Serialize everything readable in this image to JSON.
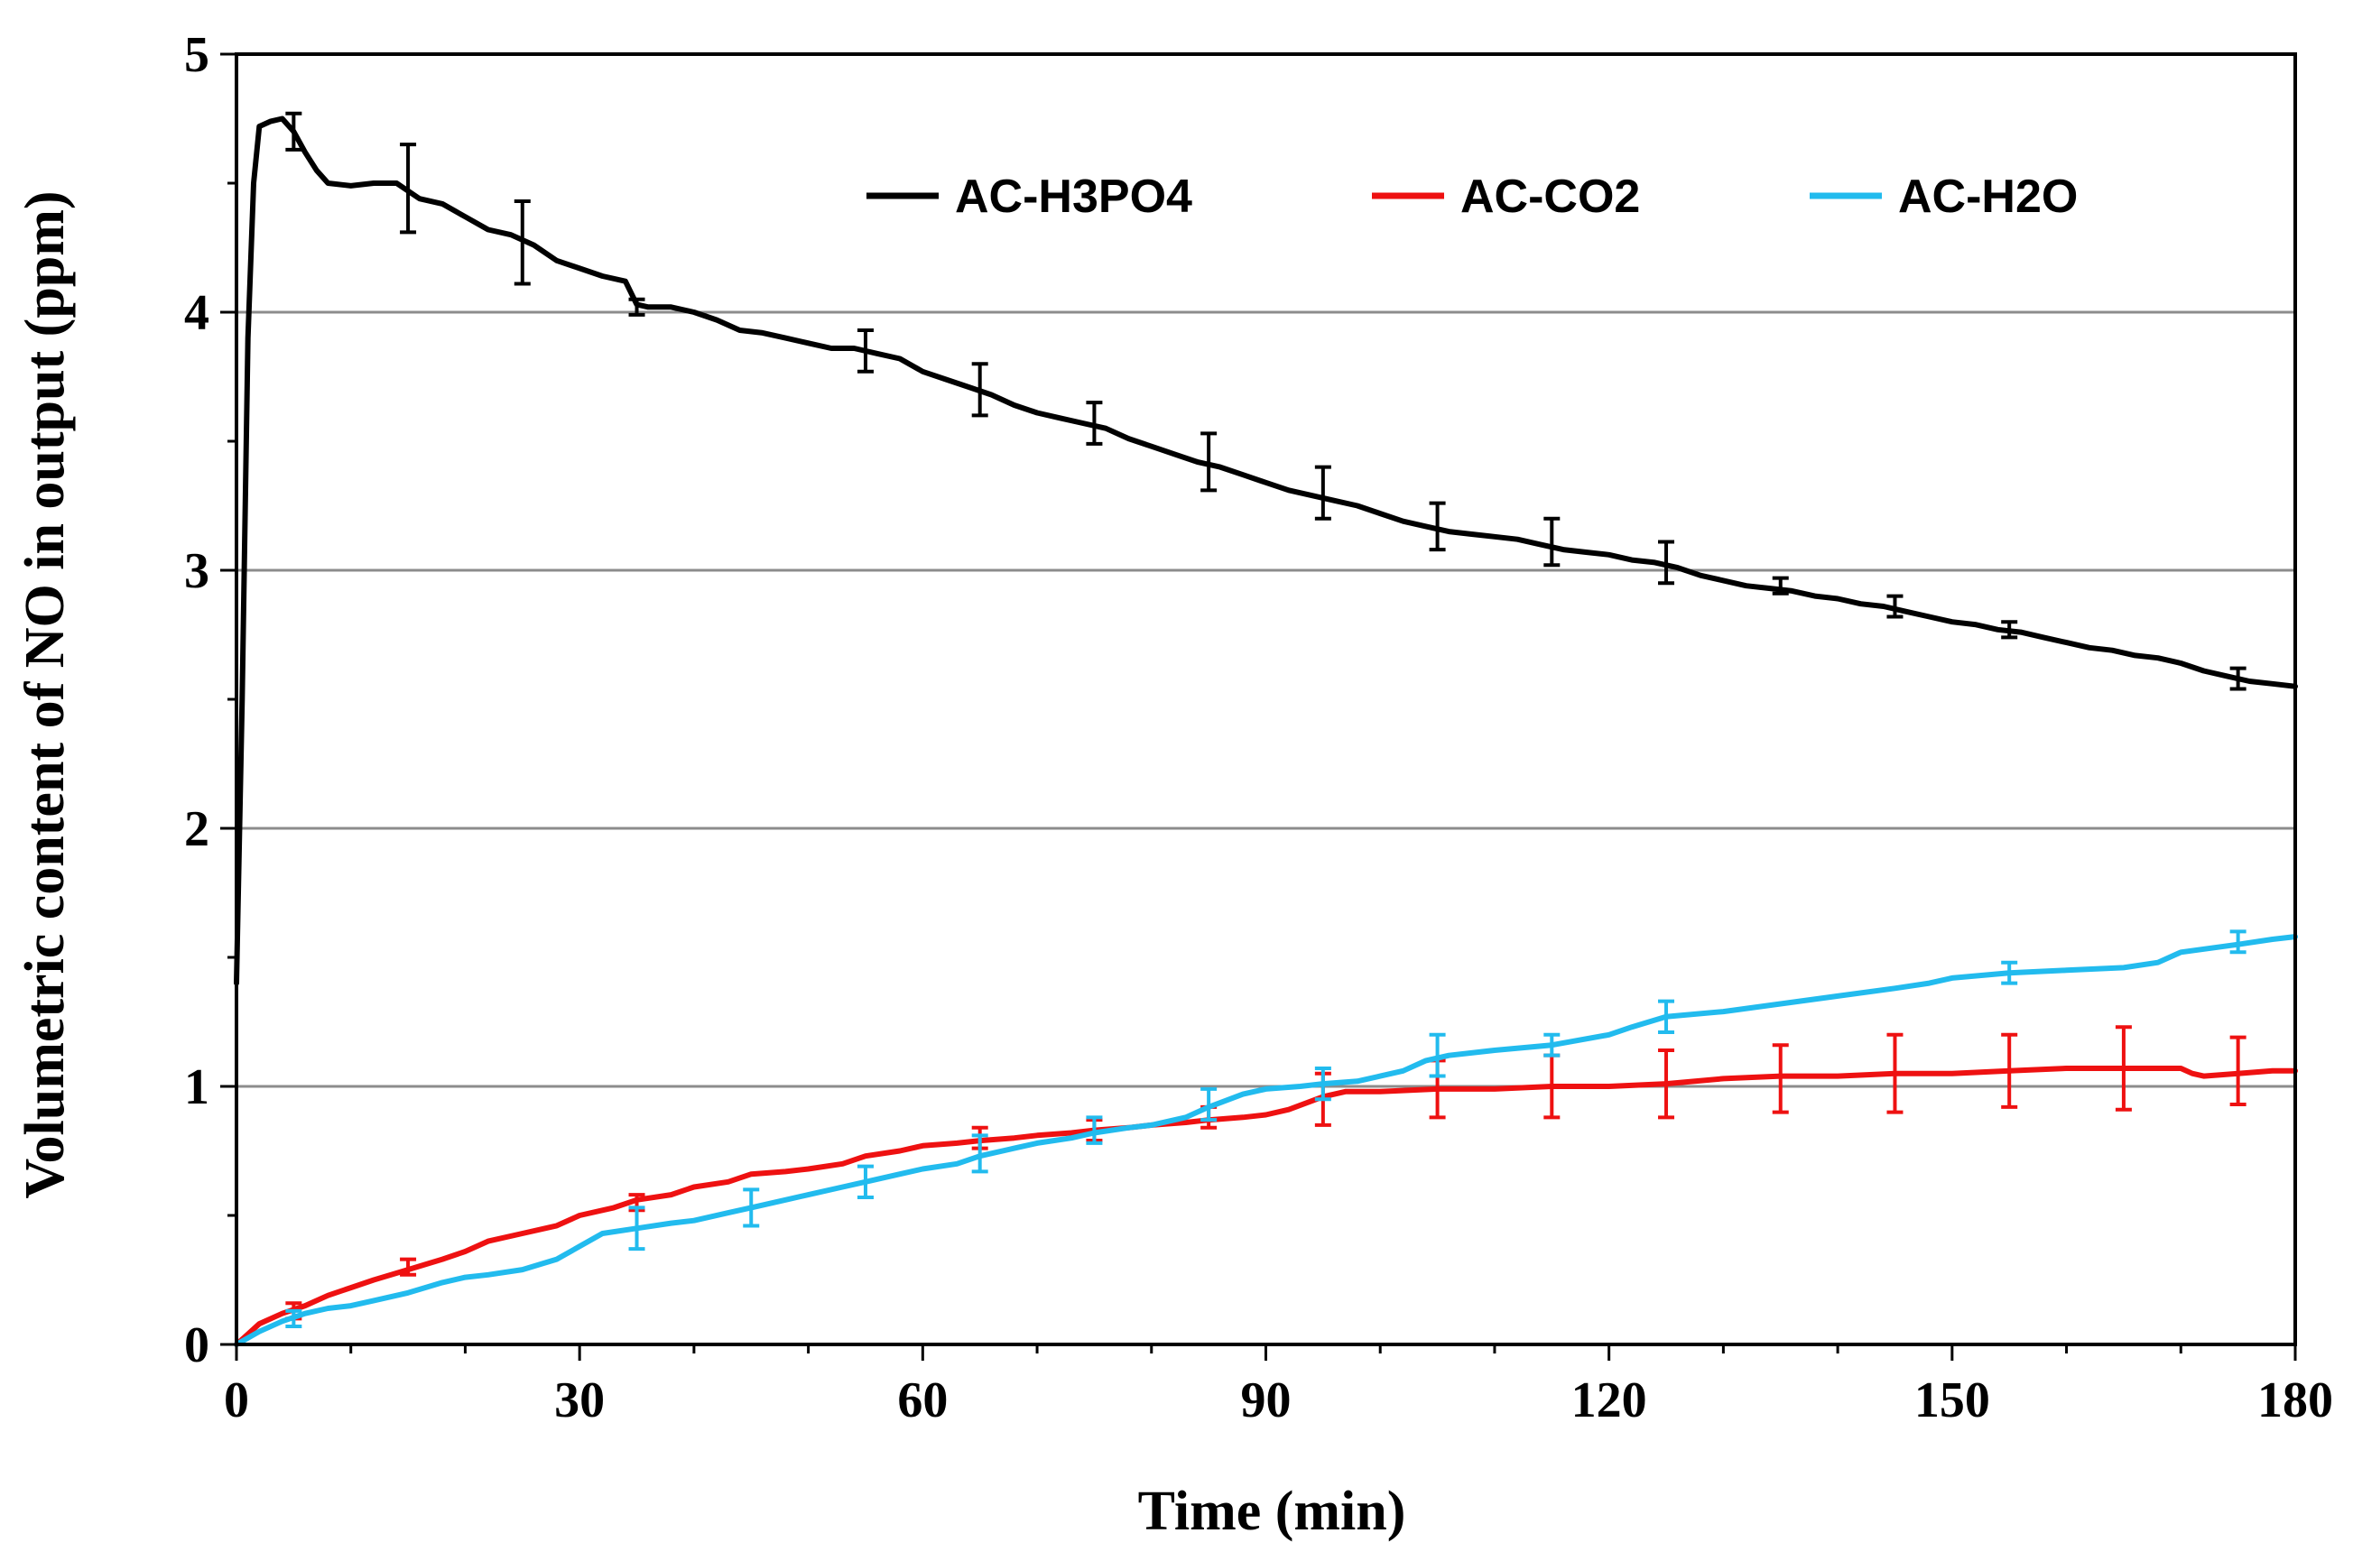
{
  "chart_data": {
    "type": "line",
    "title": "",
    "xlabel": "Time (min)",
    "ylabel": "Volumetric content of NO in output (ppm)",
    "xlim": [
      0,
      180
    ],
    "ylim": [
      0,
      5
    ],
    "x_ticks": [
      0,
      30,
      60,
      90,
      120,
      150,
      180
    ],
    "y_ticks": [
      0,
      1,
      2,
      3,
      4,
      5
    ],
    "grid": "horizontal",
    "legend_position": "top-right",
    "series": [
      {
        "name": "AC-H3PO4",
        "color": "#000000",
        "x": [
          0,
          0.5,
          1,
          1.5,
          2,
          3,
          4,
          5,
          6,
          7,
          8,
          10,
          12,
          14,
          16,
          18,
          20,
          22,
          24,
          26,
          28,
          30,
          32,
          34,
          35,
          36,
          38,
          40,
          42,
          44,
          46,
          48,
          50,
          52,
          54,
          56,
          58,
          60,
          62,
          64,
          66,
          68,
          70,
          72,
          74,
          76,
          78,
          80,
          82,
          84,
          86,
          88,
          90,
          92,
          94,
          96,
          98,
          100,
          102,
          104,
          106,
          108,
          110,
          112,
          114,
          116,
          118,
          120,
          122,
          124,
          126,
          128,
          130,
          132,
          134,
          136,
          138,
          140,
          142,
          144,
          146,
          148,
          150,
          152,
          154,
          156,
          158,
          160,
          162,
          164,
          166,
          168,
          170,
          172,
          174,
          176,
          178,
          180
        ],
        "y": [
          1.4,
          2.5,
          3.9,
          4.5,
          4.72,
          4.74,
          4.75,
          4.7,
          4.62,
          4.55,
          4.5,
          4.49,
          4.5,
          4.5,
          4.44,
          4.42,
          4.37,
          4.32,
          4.3,
          4.26,
          4.2,
          4.17,
          4.14,
          4.12,
          4.03,
          4.02,
          4.02,
          4.0,
          3.97,
          3.93,
          3.92,
          3.9,
          3.88,
          3.86,
          3.86,
          3.84,
          3.82,
          3.77,
          3.74,
          3.71,
          3.68,
          3.64,
          3.61,
          3.59,
          3.57,
          3.55,
          3.51,
          3.48,
          3.45,
          3.42,
          3.4,
          3.37,
          3.34,
          3.31,
          3.29,
          3.27,
          3.25,
          3.22,
          3.19,
          3.17,
          3.15,
          3.14,
          3.13,
          3.12,
          3.1,
          3.08,
          3.07,
          3.06,
          3.04,
          3.03,
          3.01,
          2.98,
          2.96,
          2.94,
          2.93,
          2.92,
          2.9,
          2.89,
          2.87,
          2.86,
          2.84,
          2.82,
          2.8,
          2.79,
          2.77,
          2.76,
          2.74,
          2.72,
          2.7,
          2.69,
          2.67,
          2.66,
          2.64,
          2.61,
          2.59,
          2.57,
          2.56,
          2.55
        ],
        "error_x": [
          5,
          15,
          25,
          35,
          55,
          65,
          75,
          85,
          95,
          105,
          115,
          125,
          135,
          145,
          155,
          175
        ],
        "error_y": [
          4.7,
          4.48,
          4.27,
          4.02,
          3.85,
          3.7,
          3.57,
          3.42,
          3.3,
          3.17,
          3.11,
          3.03,
          2.94,
          2.86,
          2.77,
          2.58
        ],
        "error_size": [
          0.07,
          0.17,
          0.16,
          0.03,
          0.08,
          0.1,
          0.08,
          0.11,
          0.1,
          0.09,
          0.09,
          0.08,
          0.03,
          0.04,
          0.03,
          0.04
        ]
      },
      {
        "name": "AC-CO2",
        "color": "#ee1111",
        "x": [
          0,
          1,
          2,
          4,
          6,
          8,
          10,
          12,
          15,
          18,
          20,
          22,
          25,
          28,
          30,
          33,
          35,
          38,
          40,
          43,
          45,
          48,
          50,
          53,
          55,
          58,
          60,
          63,
          65,
          68,
          70,
          73,
          75,
          78,
          80,
          83,
          85,
          88,
          90,
          92,
          95,
          97,
          100,
          105,
          110,
          115,
          120,
          125,
          130,
          135,
          140,
          145,
          150,
          155,
          160,
          165,
          170,
          171,
          172,
          175,
          178,
          180
        ],
        "y": [
          0,
          0.04,
          0.08,
          0.12,
          0.15,
          0.19,
          0.22,
          0.25,
          0.29,
          0.33,
          0.36,
          0.4,
          0.43,
          0.46,
          0.5,
          0.53,
          0.56,
          0.58,
          0.61,
          0.63,
          0.66,
          0.67,
          0.68,
          0.7,
          0.73,
          0.75,
          0.77,
          0.78,
          0.79,
          0.8,
          0.81,
          0.82,
          0.83,
          0.84,
          0.85,
          0.86,
          0.87,
          0.88,
          0.89,
          0.91,
          0.96,
          0.98,
          0.98,
          0.99,
          0.99,
          1.0,
          1.0,
          1.01,
          1.03,
          1.04,
          1.04,
          1.05,
          1.05,
          1.06,
          1.07,
          1.07,
          1.07,
          1.05,
          1.04,
          1.05,
          1.06,
          1.06
        ],
        "error_x": [
          5,
          15,
          35,
          65,
          75,
          85,
          95,
          105,
          115,
          125,
          135,
          145,
          155,
          165,
          175
        ],
        "error_y": [
          0.13,
          0.3,
          0.55,
          0.8,
          0.83,
          0.88,
          0.95,
          0.99,
          1.0,
          1.01,
          1.03,
          1.05,
          1.06,
          1.07,
          1.06
        ],
        "error_size": [
          0.03,
          0.03,
          0.03,
          0.04,
          0.04,
          0.04,
          0.1,
          0.11,
          0.12,
          0.13,
          0.13,
          0.15,
          0.14,
          0.16,
          0.13
        ]
      },
      {
        "name": "AC-H2O",
        "color": "#22bbee",
        "x": [
          0,
          2,
          4,
          6,
          8,
          10,
          12,
          15,
          18,
          20,
          22,
          25,
          28,
          30,
          32,
          35,
          38,
          40,
          43,
          45,
          48,
          50,
          53,
          55,
          58,
          60,
          63,
          65,
          68,
          70,
          73,
          75,
          78,
          80,
          83,
          85,
          88,
          90,
          93,
          95,
          98,
          100,
          102,
          104,
          106,
          110,
          115,
          120,
          122,
          125,
          130,
          135,
          140,
          145,
          148,
          150,
          155,
          160,
          165,
          168,
          170,
          175,
          178,
          180
        ],
        "y": [
          0,
          0.05,
          0.09,
          0.12,
          0.14,
          0.15,
          0.17,
          0.2,
          0.24,
          0.26,
          0.27,
          0.29,
          0.33,
          0.38,
          0.43,
          0.45,
          0.47,
          0.48,
          0.51,
          0.53,
          0.56,
          0.58,
          0.61,
          0.63,
          0.66,
          0.68,
          0.7,
          0.73,
          0.76,
          0.78,
          0.8,
          0.82,
          0.84,
          0.85,
          0.88,
          0.92,
          0.97,
          0.99,
          1.0,
          1.01,
          1.02,
          1.04,
          1.06,
          1.1,
          1.12,
          1.14,
          1.16,
          1.2,
          1.23,
          1.27,
          1.29,
          1.32,
          1.35,
          1.38,
          1.4,
          1.42,
          1.44,
          1.45,
          1.46,
          1.48,
          1.52,
          1.55,
          1.57,
          1.58
        ],
        "error_x": [
          5,
          35,
          45,
          55,
          65,
          75,
          85,
          95,
          105,
          115,
          125,
          155,
          175
        ],
        "error_y": [
          0.1,
          0.45,
          0.53,
          0.63,
          0.74,
          0.83,
          0.93,
          1.01,
          1.12,
          1.16,
          1.27,
          1.44,
          1.56
        ],
        "error_size": [
          0.03,
          0.08,
          0.07,
          0.06,
          0.07,
          0.05,
          0.06,
          0.06,
          0.08,
          0.04,
          0.06,
          0.04,
          0.04
        ]
      }
    ]
  }
}
